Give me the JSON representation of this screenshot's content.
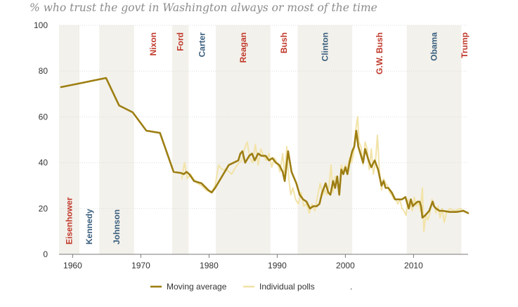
{
  "chart_data": {
    "type": "line",
    "title": "% who trust the govt in Washington always or most of the time",
    "xlim": [
      1958,
      2018
    ],
    "ylim": [
      0,
      100
    ],
    "x_ticks": [
      1960,
      1970,
      1980,
      1990,
      2000,
      2010
    ],
    "y_ticks": [
      0,
      20,
      40,
      60,
      80,
      100
    ],
    "grid": true,
    "legend_position": "bottom-center",
    "legend_extra": ".",
    "colors": {
      "moving_average": "#9d7e12",
      "individual_polls": "#f2e3a8",
      "republican": "#c0392b",
      "democrat": "#3a5f7f",
      "shade": "#f3f1eb"
    },
    "presidents": [
      {
        "name": "Eisenhower",
        "party": "R",
        "start": 1958,
        "end": 1961,
        "shaded": true
      },
      {
        "name": "Kennedy",
        "party": "D",
        "start": 1961,
        "end": 1963.9,
        "shaded": false
      },
      {
        "name": "Johnson",
        "party": "D",
        "start": 1963.9,
        "end": 1969,
        "shaded": true
      },
      {
        "name": "Nixon",
        "party": "R",
        "start": 1969,
        "end": 1974.6,
        "shaded": false
      },
      {
        "name": "Ford",
        "party": "R",
        "start": 1974.6,
        "end": 1977,
        "shaded": true
      },
      {
        "name": "Carter",
        "party": "D",
        "start": 1977,
        "end": 1981,
        "shaded": false
      },
      {
        "name": "Reagan",
        "party": "R",
        "start": 1981,
        "end": 1989,
        "shaded": true
      },
      {
        "name": "Bush",
        "party": "R",
        "start": 1989,
        "end": 1993,
        "shaded": false
      },
      {
        "name": "Clinton",
        "party": "D",
        "start": 1993,
        "end": 2001,
        "shaded": true
      },
      {
        "name": "G.W. Bush",
        "party": "R",
        "start": 2001,
        "end": 2009,
        "shaded": false
      },
      {
        "name": "Obama",
        "party": "D",
        "start": 2009,
        "end": 2017,
        "shaded": true
      },
      {
        "name": "Trump",
        "party": "R",
        "start": 2017,
        "end": 2018,
        "shaded": false
      }
    ],
    "series": [
      {
        "name": "Moving average",
        "x": [
          1958.3,
          1964.9,
          1966.8,
          1968.8,
          1970.8,
          1972.8,
          1974.8,
          1975.9,
          1976.3,
          1976.7,
          1977.1,
          1977.8,
          1978.9,
          1979.9,
          1980.4,
          1980.9,
          1982.9,
          1984.3,
          1984.6,
          1984.9,
          1985.3,
          1985.9,
          1986.3,
          1986.7,
          1987.2,
          1987.7,
          1988.3,
          1988.8,
          1989.3,
          1989.8,
          1990.3,
          1990.8,
          1991.1,
          1991.6,
          1992.1,
          1992.8,
          1993.3,
          1993.8,
          1994.3,
          1994.8,
          1995.3,
          1995.8,
          1996.2,
          1996.6,
          1997.1,
          1997.5,
          1997.8,
          1998.2,
          1998.5,
          1998.8,
          1999.1,
          1999.4,
          1999.7,
          2000.0,
          2000.3,
          2000.6,
          2001.0,
          2001.3,
          2001.6,
          2001.9,
          2002.3,
          2002.6,
          2002.9,
          2003.4,
          2003.8,
          2004.3,
          2004.8,
          2005.3,
          2005.6,
          2005.9,
          2006.3,
          2006.8,
          2007.3,
          2007.8,
          2008.3,
          2008.8,
          2009.3,
          2009.6,
          2009.9,
          2010.2,
          2010.6,
          2010.9,
          2011.1,
          2011.3,
          2011.7,
          2012.3,
          2012.8,
          2013.0,
          2013.3,
          2013.8,
          2014.3,
          2015.3,
          2016.3,
          2017.3,
          2018.0
        ],
        "y": [
          73,
          77,
          65,
          62,
          54,
          53,
          36,
          35.5,
          35,
          36,
          35,
          32,
          31,
          28,
          27,
          29,
          39,
          41,
          44,
          45,
          40,
          43,
          44,
          41,
          44,
          43,
          43,
          41,
          42,
          40,
          39,
          36,
          32,
          45,
          36,
          31,
          26,
          24,
          23,
          20,
          21,
          21,
          22,
          27,
          31,
          27,
          26,
          32,
          29,
          34,
          26,
          37,
          35,
          38,
          35,
          40,
          45,
          47,
          54,
          47,
          43,
          40,
          46,
          41,
          38,
          41,
          37,
          30,
          32,
          29,
          29,
          27,
          24,
          24,
          24,
          25,
          20,
          24,
          21,
          22,
          23,
          23,
          21,
          16,
          17,
          19,
          23,
          21,
          20,
          19,
          19,
          18.5,
          18.5,
          19,
          18
        ]
      },
      {
        "name": "Individual polls",
        "x": [
          1976.0,
          1976.4,
          1976.8,
          1977.3,
          1977.7,
          1978.3,
          1978.9,
          1979.6,
          1980.3,
          1980.9,
          1981.4,
          1981.9,
          1982.6,
          1983.3,
          1983.9,
          1984.4,
          1984.8,
          1985.2,
          1985.6,
          1986.0,
          1986.4,
          1986.8,
          1987.2,
          1987.6,
          1988.0,
          1988.4,
          1988.8,
          1989.2,
          1989.6,
          1990.0,
          1990.4,
          1990.8,
          1991.1,
          1991.4,
          1991.7,
          1992.0,
          1992.3,
          1992.7,
          1993.1,
          1993.5,
          1993.9,
          1994.3,
          1994.7,
          1995.1,
          1995.5,
          1995.9,
          1996.3,
          1996.7,
          1997.0,
          1997.3,
          1997.6,
          1997.9,
          1998.2,
          1998.5,
          1998.8,
          1999.1,
          1999.4,
          1999.7,
          2000.0,
          2000.3,
          2000.6,
          2000.9,
          2001.2,
          2001.5,
          2001.8,
          2002.0,
          2002.3,
          2002.6,
          2002.9,
          2003.2,
          2003.5,
          2003.8,
          2004.1,
          2004.4,
          2004.7,
          2005.0,
          2005.3,
          2005.6,
          2005.9,
          2006.2,
          2006.5,
          2006.8,
          2007.1,
          2007.4,
          2007.7,
          2008.0,
          2008.3,
          2008.6,
          2008.9,
          2009.2,
          2009.5,
          2009.8,
          2010.1,
          2010.4,
          2010.7,
          2011.0,
          2011.3,
          2011.5,
          2011.8,
          2012.1,
          2012.4,
          2012.7,
          2013.0,
          2013.3,
          2013.6,
          2013.9,
          2014.2,
          2014.5,
          2014.8,
          2015.3,
          2016.0,
          2016.8,
          2017.4,
          2018.0
        ],
        "y": [
          33,
          40,
          33,
          35,
          33,
          31,
          30,
          28,
          27,
          30,
          39,
          37,
          37,
          35,
          38,
          40,
          41,
          46,
          49,
          42,
          40,
          48,
          39,
          46,
          43,
          41,
          44,
          38,
          42,
          40,
          36,
          44,
          34,
          47,
          33,
          26,
          29,
          24,
          22,
          27,
          21,
          22,
          18,
          22,
          19,
          25,
          31,
          26,
          28,
          26,
          30,
          39,
          27,
          34,
          33,
          26,
          39,
          36,
          39,
          37,
          42,
          40,
          44,
          54,
          60,
          49,
          47,
          39,
          49,
          46,
          37,
          46,
          35,
          40,
          52,
          36,
          28,
          33,
          31,
          30,
          27,
          26,
          24,
          24,
          22,
          24,
          20,
          19,
          17,
          24,
          22,
          19,
          25,
          21,
          23,
          19,
          29,
          10,
          17,
          15,
          18,
          24,
          22,
          18,
          21,
          16,
          20,
          14,
          18,
          20,
          19,
          20,
          19,
          18
        ]
      }
    ]
  }
}
